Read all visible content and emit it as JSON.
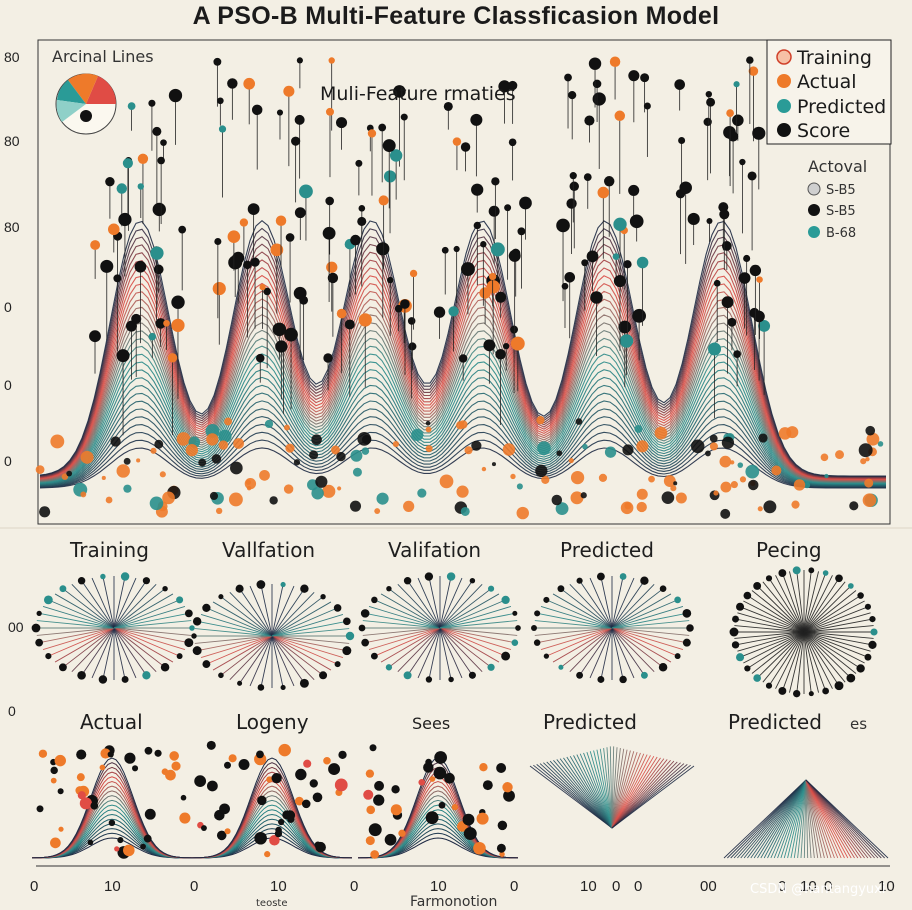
{
  "title": "A PSO-B Multi-Feature Classficasion Model",
  "colors": {
    "background": "#f3efe4",
    "navy": "#1e2a44",
    "teal": "#2a8f8c",
    "red": "#e04c45",
    "orange": "#ee7a2a",
    "black": "#111111"
  },
  "main_chart": {
    "inset_label": "Arcinal Lines",
    "subtitle": "Muli-Feature rmaties",
    "y_tick_labels": [
      "80",
      "80",
      "80",
      "0",
      "0",
      "0"
    ],
    "legend": [
      {
        "label": "Training",
        "color": "#f0a48a",
        "icon": "circle-outline"
      },
      {
        "label": "Actual",
        "color": "#ee7a2a",
        "icon": "circle"
      },
      {
        "label": "Predicted",
        "color": "#2a9b97",
        "icon": "circle"
      },
      {
        "label": "Score",
        "color": "#111111",
        "icon": "circle"
      }
    ],
    "side_legend": {
      "title": "Actoval",
      "items": [
        {
          "label": "S-B5",
          "color": "#cfcfcf"
        },
        {
          "label": "S-B5",
          "color": "#111111"
        },
        {
          "label": "B-68",
          "color": "#2a9b97"
        }
      ]
    }
  },
  "panels_row1": [
    {
      "title": "Training",
      "kind": "radial-bowtie",
      "ytick": "00"
    },
    {
      "title": "Vallfation",
      "kind": "bowtie-x"
    },
    {
      "title": "Valifation",
      "kind": "bowtie-wide"
    },
    {
      "title": "Predicted",
      "kind": "fan-center"
    },
    {
      "title": "Pecing",
      "kind": "starburst"
    }
  ],
  "panels_row2": [
    {
      "title": "Actual",
      "kind": "mountain"
    },
    {
      "title": "Logeny",
      "kind": "mountain"
    },
    {
      "title": "Sees",
      "kind": "mountain"
    },
    {
      "title": "Predicted",
      "kind": "fan-down"
    },
    {
      "title": "Predicted",
      "kind": "fan-up",
      "extra": "es"
    }
  ],
  "row_ytick": "0",
  "bottom_axis": {
    "tick_labels": [
      "0",
      "10",
      "0",
      "10",
      "0",
      "10",
      "0",
      "10",
      "0",
      "0",
      "00",
      "0",
      "10",
      "0",
      "10"
    ],
    "xlabel": "Farmonotion",
    "small_label": "teoste"
  },
  "watermark": "CSDN @hantangyuxi",
  "chart_data": {
    "type": "line",
    "title": "A PSO-B Multi-Feature Classficasion Model",
    "series": [
      {
        "name": "Training",
        "values": []
      },
      {
        "name": "Actual",
        "values": []
      },
      {
        "name": "Predicted",
        "values": []
      },
      {
        "name": "Score",
        "values": []
      }
    ],
    "legend_position": "top-right",
    "grid": false
  }
}
